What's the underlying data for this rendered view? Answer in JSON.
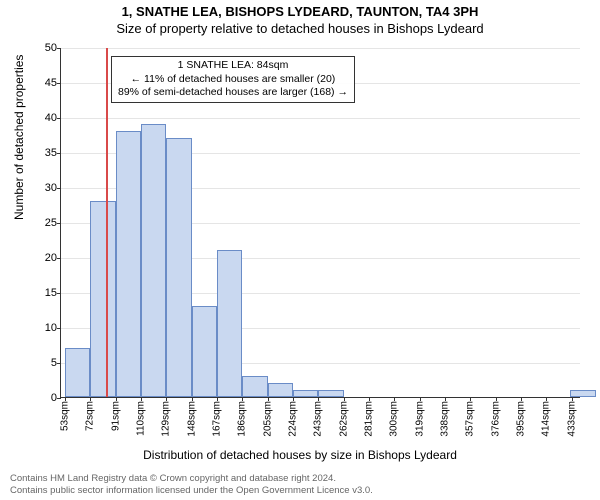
{
  "title_main": "1, SNATHE LEA, BISHOPS LYDEARD, TAUNTON, TA4 3PH",
  "title_sub": "Size of property relative to detached houses in Bishops Lydeard",
  "chart": {
    "type": "histogram",
    "y_label": "Number of detached properties",
    "x_label": "Distribution of detached houses by size in Bishops Lydeard",
    "ylim": [
      0,
      50
    ],
    "ytick_step": 5,
    "bar_fill": "#c9d8f0",
    "bar_stroke": "#6a8cc7",
    "grid_color": "#e5e5e5",
    "reference_line_color": "#d94a4a",
    "reference_value": 84,
    "x_min": 50,
    "x_max": 440,
    "bar_width_units": 19,
    "x_tick_start": 53,
    "x_tick_step": 19,
    "x_tick_suffix": "sqm",
    "bars": [
      {
        "x": 53,
        "count": 7
      },
      {
        "x": 72,
        "count": 28
      },
      {
        "x": 91,
        "count": 38
      },
      {
        "x": 110,
        "count": 39
      },
      {
        "x": 129,
        "count": 37
      },
      {
        "x": 148,
        "count": 13
      },
      {
        "x": 167,
        "count": 21
      },
      {
        "x": 186,
        "count": 3
      },
      {
        "x": 205,
        "count": 2
      },
      {
        "x": 224,
        "count": 1
      },
      {
        "x": 243,
        "count": 1
      },
      {
        "x": 261,
        "count": 0
      },
      {
        "x": 280,
        "count": 0
      },
      {
        "x": 299,
        "count": 0
      },
      {
        "x": 318,
        "count": 0
      },
      {
        "x": 337,
        "count": 0
      },
      {
        "x": 356,
        "count": 0
      },
      {
        "x": 375,
        "count": 0
      },
      {
        "x": 394,
        "count": 0
      },
      {
        "x": 413,
        "count": 0
      },
      {
        "x": 432,
        "count": 1
      }
    ],
    "annotation": {
      "line1": "1 SNATHE LEA: 84sqm",
      "line2": "← 11% of detached houses are smaller (20)",
      "line3": "89% of semi-detached houses are larger (168) →"
    }
  },
  "footer": {
    "line1": "Contains HM Land Registry data © Crown copyright and database right 2024.",
    "line2": "Contains public sector information licensed under the Open Government Licence v3.0."
  }
}
